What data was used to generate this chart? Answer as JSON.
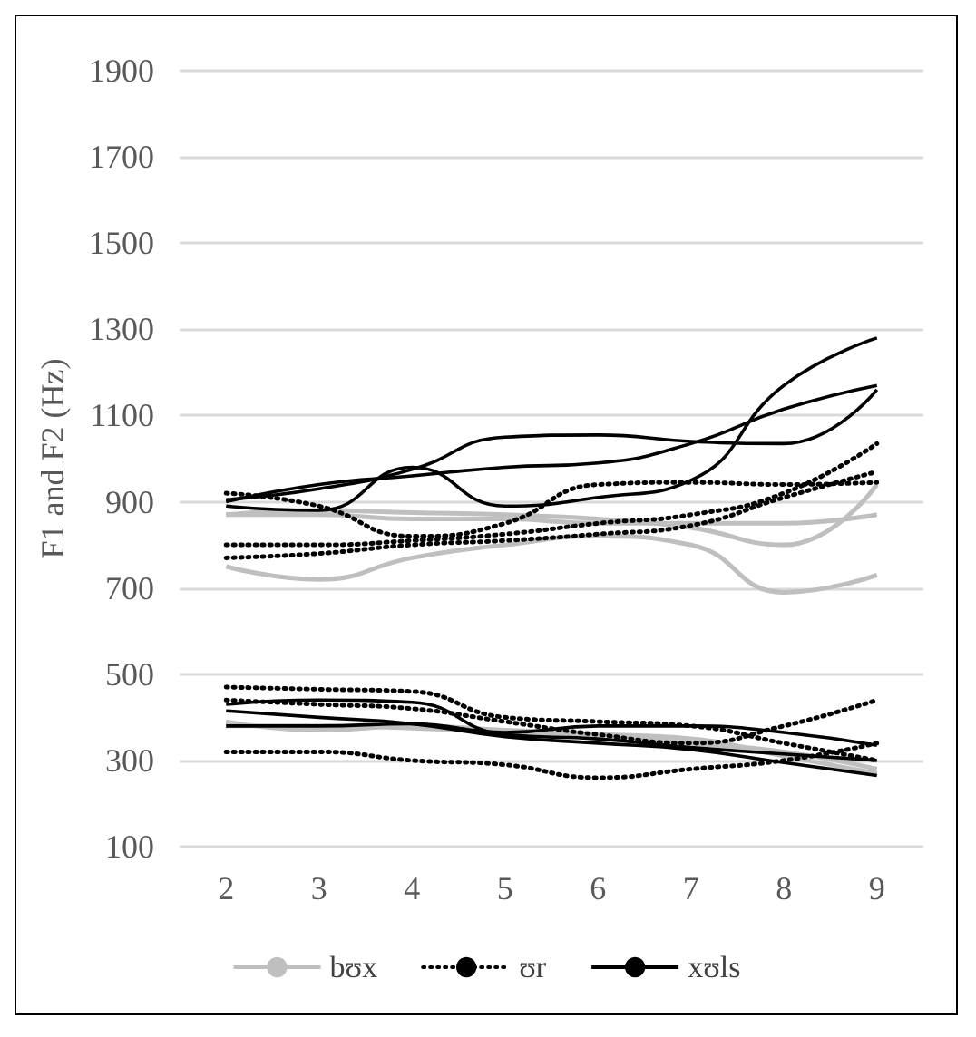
{
  "chart_data": {
    "type": "line",
    "ylabel": "F1 and F2 (Hz)",
    "categories": [
      "2",
      "3",
      "4",
      "5",
      "6",
      "7",
      "8",
      "9"
    ],
    "ylim": [
      100,
      1900
    ],
    "yticks": [
      100,
      300,
      500,
      700,
      900,
      1100,
      1300,
      1500,
      1700,
      1900
    ],
    "grid": "y",
    "legend": "bottom",
    "marker": "none",
    "series": [
      {
        "name": "bʊx",
        "color": "#bfbfbf",
        "line_style": "solid",
        "values": [
          870,
          880,
          875,
          870,
          860,
          840,
          800,
          940
        ]
      },
      {
        "color": "#bfbfbf",
        "line_style": "solid",
        "values": [
          870,
          870,
          860,
          860,
          850,
          850,
          850,
          870
        ]
      },
      {
        "color": "#bfbfbf",
        "line_style": "solid",
        "values": [
          750,
          720,
          770,
          800,
          820,
          800,
          690,
          730
        ]
      },
      {
        "color": "#bfbfbf",
        "line_style": "solid",
        "values": [
          390,
          370,
          380,
          370,
          360,
          340,
          320,
          280
        ]
      },
      {
        "color": "#bfbfbf",
        "line_style": "solid",
        "values": [
          380,
          380,
          375,
          365,
          360,
          350,
          310,
          270
        ]
      },
      {
        "name": "ʊr",
        "color": "#000000",
        "line_style": "dotted",
        "values": [
          920,
          890,
          820,
          850,
          940,
          945,
          940,
          945
        ]
      },
      {
        "color": "#000000",
        "line_style": "dotted",
        "values": [
          800,
          800,
          810,
          825,
          850,
          870,
          920,
          1035
        ]
      },
      {
        "color": "#000000",
        "line_style": "dotted",
        "values": [
          770,
          780,
          800,
          810,
          825,
          845,
          910,
          970
        ]
      },
      {
        "color": "#000000",
        "line_style": "dotted",
        "values": [
          470,
          465,
          460,
          400,
          390,
          380,
          340,
          300
        ]
      },
      {
        "color": "#000000",
        "line_style": "dotted",
        "values": [
          440,
          430,
          420,
          390,
          360,
          340,
          380,
          440
        ]
      },
      {
        "color": "#000000",
        "line_style": "dotted",
        "values": [
          320,
          320,
          300,
          290,
          260,
          280,
          300,
          340
        ]
      },
      {
        "name": "xʊls",
        "color": "#000000",
        "line_style": "solid",
        "values": [
          890,
          880,
          980,
          890,
          910,
          950,
          1170,
          1280
        ]
      },
      {
        "color": "#000000",
        "line_style": "solid",
        "values": [
          900,
          940,
          960,
          980,
          990,
          1035,
          1115,
          1170
        ]
      },
      {
        "color": "#000000",
        "line_style": "solid",
        "values": [
          905,
          930,
          975,
          1050,
          1055,
          1040,
          1035,
          1160
        ]
      },
      {
        "color": "#000000",
        "line_style": "solid",
        "values": [
          415,
          400,
          385,
          355,
          340,
          325,
          295,
          265
        ]
      },
      {
        "color": "#000000",
        "line_style": "solid",
        "values": [
          380,
          380,
          385,
          365,
          380,
          380,
          365,
          335
        ]
      },
      {
        "color": "#000000",
        "line_style": "solid",
        "values": [
          430,
          440,
          435,
          360,
          350,
          330,
          315,
          300
        ]
      }
    ]
  }
}
